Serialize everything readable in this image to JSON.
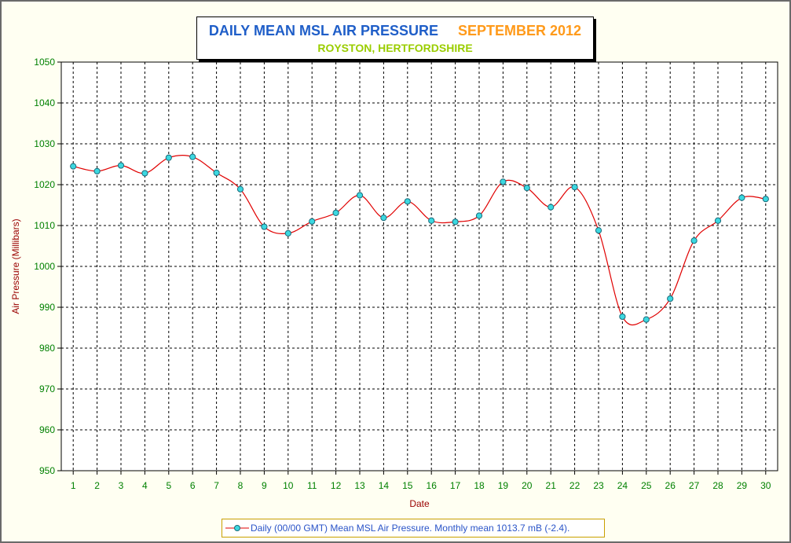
{
  "chart_data": {
    "type": "line",
    "title": "DAILY MEAN MSL AIR PRESSURE",
    "subtitle_month": "SEPTEMBER 2012",
    "subtitle_location": "ROYSTON, HERTFORDSHIRE",
    "xlabel": "Date",
    "ylabel": "Air Pressure (Millibars)",
    "ylim": [
      950,
      1050
    ],
    "ytick_step": 10,
    "grid": true,
    "legend_position": "bottom-center",
    "x": [
      1,
      2,
      3,
      4,
      5,
      6,
      7,
      8,
      9,
      10,
      11,
      12,
      13,
      14,
      15,
      16,
      17,
      18,
      19,
      20,
      21,
      22,
      23,
      24,
      25,
      26,
      27,
      28,
      29,
      30
    ],
    "series": [
      {
        "name": "Daily (00/00 GMT) Mean MSL Air Pressure. Monthly mean 1013.7 mB (-2.4).",
        "values": [
          1024.5,
          1023.3,
          1024.7,
          1022.8,
          1026.6,
          1026.8,
          1022.9,
          1018.9,
          1009.7,
          1008.1,
          1011.0,
          1013.1,
          1017.4,
          1011.9,
          1015.9,
          1011.2,
          1010.9,
          1012.4,
          1020.7,
          1019.2,
          1014.5,
          1019.4,
          1008.8,
          987.7,
          987.0,
          992.1,
          1006.3,
          1011.2,
          1016.8,
          1016.5
        ]
      }
    ],
    "colors": {
      "line": "#e00000",
      "marker_fill": "#3cd8e0",
      "marker_edge": "#1a6a7a",
      "tick_label": "#008000",
      "axis_title": "#9a0000",
      "grid": "#000000"
    }
  }
}
